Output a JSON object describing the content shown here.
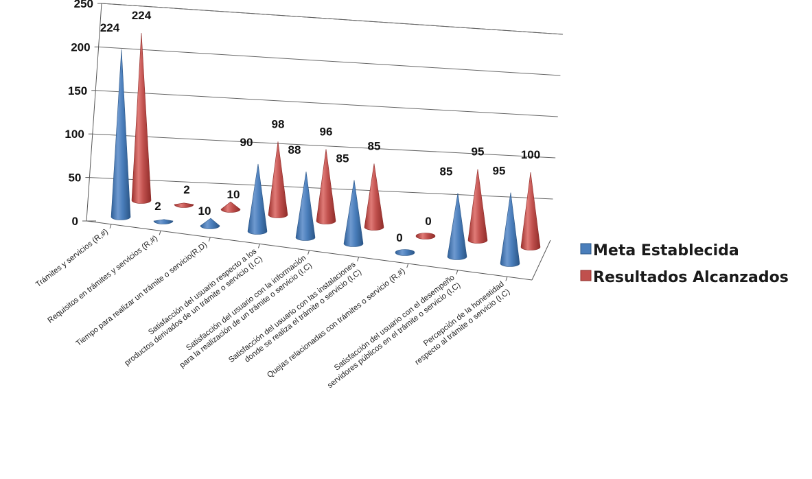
{
  "chart_data": {
    "type": "bar",
    "bar_shape": "cone-3d",
    "ylim": [
      0,
      250
    ],
    "yticks": [
      "0",
      "50",
      "100",
      "150",
      "200",
      "250"
    ],
    "grid": true,
    "legend_position": "right",
    "categories": [
      [
        "Trámites y servicios (R,#)"
      ],
      [
        "Requisitos en trámites y servicios (R,#)"
      ],
      [
        "Tiempo para realizar un trámite o servicio(R,D)"
      ],
      [
        "Satisfacción del usuario respecto a los",
        "productos derivados de un trámite o servicio (I,C)"
      ],
      [
        "Satisfacción del usuario con la información",
        "para la realización de un trámite o servicio (I,C)"
      ],
      [
        "Satisfacción del usuario con las instalaciones",
        "donde se realiza el trámite o servicio (I,C)"
      ],
      [
        "Quejas relacionadas con trámites o servicio (R,#)"
      ],
      [
        "Satisfacción del usuario con el desempeño",
        "servidores públicos en el trámite o servicio (I,C)"
      ],
      [
        "Percepción de la honestidad",
        "respecto al trámite o servicio (I,C)"
      ]
    ],
    "series": [
      {
        "name": "Meta Establecida",
        "color": "#4a7ebb",
        "values": [
          224,
          2,
          10,
          90,
          88,
          85,
          0,
          85,
          95
        ],
        "labels": [
          "224",
          "2",
          "10",
          "90",
          "88",
          "85",
          "0",
          "85",
          "95"
        ]
      },
      {
        "name": "Resultados Alcanzados",
        "color": "#c0504d",
        "values": [
          224,
          2,
          10,
          98,
          96,
          85,
          0,
          95,
          100
        ],
        "labels": [
          "224",
          "2",
          "10",
          "98",
          "96",
          "85",
          "0",
          "95",
          "100"
        ]
      }
    ]
  }
}
